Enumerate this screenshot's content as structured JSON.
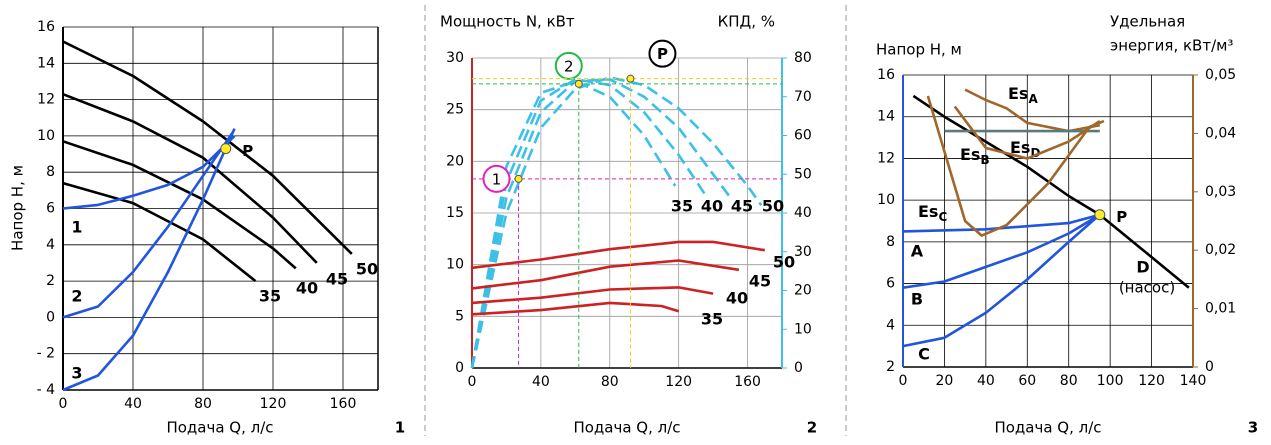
{
  "chart_data": [
    {
      "type": "line",
      "number": "1",
      "xlabel": "Подача Q, л/с",
      "ylabel": "Напор Н, м",
      "xlim": [
        0,
        180
      ],
      "xticks": [
        0,
        40,
        80,
        120,
        160
      ],
      "ylim": [
        -4,
        16
      ],
      "yticks": [
        {
          "value": -4,
          "label": "- 4"
        },
        {
          "value": -2,
          "label": "- 2"
        },
        0,
        2,
        4,
        6,
        8,
        10,
        12,
        14,
        16
      ],
      "grid": true,
      "grid_color": "#000000",
      "series": [
        {
          "name": "35",
          "color": "#000000",
          "x": [
            0,
            40,
            80,
            110
          ],
          "values": [
            7.4,
            6.3,
            4.3,
            2.0
          ]
        },
        {
          "name": "40",
          "color": "#000000",
          "x": [
            0,
            40,
            80,
            120,
            133
          ],
          "values": [
            9.7,
            8.4,
            6.5,
            3.8,
            2.7
          ]
        },
        {
          "name": "45",
          "color": "#000000",
          "x": [
            0,
            40,
            80,
            120,
            145
          ],
          "values": [
            12.3,
            10.8,
            8.8,
            5.5,
            3.0
          ]
        },
        {
          "name": "50",
          "color": "#000000",
          "x": [
            0,
            40,
            80,
            120,
            165
          ],
          "values": [
            15.2,
            13.3,
            10.8,
            7.8,
            3.5
          ]
        },
        {
          "name": "1",
          "color": "#2255dd",
          "label_color": "#e020c0",
          "x": [
            0,
            20,
            40,
            60,
            80,
            98
          ],
          "values": [
            6.0,
            6.2,
            6.7,
            7.3,
            8.3,
            10.0
          ]
        },
        {
          "name": "2",
          "color": "#2255dd",
          "label_color": "#22bb44",
          "x": [
            0,
            20,
            40,
            60,
            80,
            97
          ],
          "values": [
            0,
            0.6,
            2.5,
            5.0,
            7.8,
            10.2
          ]
        },
        {
          "name": "3",
          "color": "#2255dd",
          "label_color": "#2255dd",
          "x": [
            0,
            20,
            40,
            60,
            80,
            98
          ],
          "values": [
            -4,
            -3.2,
            -1.0,
            2.5,
            6.5,
            10.4
          ]
        }
      ],
      "points": [
        {
          "label": "P",
          "x": 93,
          "y": 9.3,
          "color": "#000000"
        }
      ]
    },
    {
      "type": "line",
      "number": "2",
      "xlabel": "Подача Q, л/с",
      "ylabel": "Мощность N, кВт",
      "y2label": "КПД, %",
      "xlim": [
        0,
        180
      ],
      "xticks": [
        0,
        40,
        80,
        120,
        160
      ],
      "ylim": [
        0,
        30
      ],
      "yticks": [
        0,
        5,
        10,
        15,
        20,
        25,
        30
      ],
      "y2lim": [
        0,
        80
      ],
      "y2ticks": [
        0,
        10,
        20,
        30,
        40,
        50,
        60,
        70,
        80
      ],
      "grid": true,
      "grid_color": "#9a9a9a",
      "y_axis_color": "#cc2222",
      "y2_axis_color": "#3cc0e8",
      "series": [
        {
          "name": "35",
          "color": "#3cc0e8",
          "dashed": true,
          "axis": "y2",
          "x": [
            0,
            20,
            40,
            60,
            80,
            100,
            118
          ],
          "values": [
            0,
            52,
            71,
            74,
            70,
            60,
            47
          ]
        },
        {
          "name": "40",
          "color": "#3cc0e8",
          "dashed": true,
          "axis": "y2",
          "x": [
            0,
            20,
            40,
            60,
            80,
            100,
            120,
            135
          ],
          "values": [
            0,
            48,
            69,
            74.5,
            73,
            66,
            55,
            45
          ]
        },
        {
          "name": "45",
          "color": "#3cc0e8",
          "dashed": true,
          "axis": "y2",
          "x": [
            0,
            20,
            40,
            60,
            80,
            100,
            120,
            140,
            150
          ],
          "values": [
            0,
            44,
            66,
            74,
            74.5,
            70,
            62,
            50,
            44
          ]
        },
        {
          "name": "50",
          "color": "#3cc0e8",
          "dashed": true,
          "axis": "y2",
          "x": [
            0,
            20,
            40,
            60,
            80,
            100,
            120,
            140,
            160,
            168
          ],
          "values": [
            0,
            40,
            62,
            72,
            75,
            73,
            67,
            58,
            47,
            42
          ]
        },
        {
          "name": "50",
          "color": "#cc2222",
          "x": [
            0,
            40,
            80,
            120,
            140,
            170
          ],
          "values": [
            9.7,
            10.5,
            11.5,
            12.2,
            12.2,
            11.4
          ]
        },
        {
          "name": "45",
          "color": "#cc2222",
          "x": [
            0,
            40,
            80,
            120,
            155
          ],
          "values": [
            7.7,
            8.5,
            9.8,
            10.4,
            9.5
          ]
        },
        {
          "name": "40",
          "color": "#cc2222",
          "x": [
            0,
            40,
            80,
            120,
            140
          ],
          "values": [
            6.3,
            6.8,
            7.6,
            7.8,
            7.2
          ]
        },
        {
          "name": "35",
          "color": "#cc2222",
          "x": [
            0,
            40,
            80,
            110,
            120
          ],
          "values": [
            5.2,
            5.6,
            6.3,
            6.0,
            5.5
          ]
        }
      ],
      "points": [
        {
          "label": "1",
          "x": 27,
          "y": 18.3,
          "color": "#e020c0"
        },
        {
          "label": "2",
          "x": 62,
          "y": 27.5,
          "color": "#22bb44"
        },
        {
          "label": "P",
          "x": 92,
          "y": 28,
          "color": "#000000"
        }
      ]
    },
    {
      "type": "line",
      "number": "3",
      "xlabel": "Подача Q, л/с",
      "ylabel": "Напор Н, м",
      "y2label": [
        "Удельная",
        "энергия, кВт/м³"
      ],
      "xlim": [
        0,
        140
      ],
      "xticks": [
        0,
        20,
        40,
        60,
        80,
        100,
        120,
        140
      ],
      "ylim": [
        2,
        16
      ],
      "yticks": [
        2,
        4,
        6,
        8,
        10,
        12,
        14,
        16
      ],
      "y2lim": [
        0,
        0.05
      ],
      "y2ticks": [
        0,
        {
          "value": 0.01,
          "label": "0,01"
        },
        {
          "value": 0.02,
          "label": "0,02"
        },
        {
          "value": 0.03,
          "label": "0,03"
        },
        {
          "value": 0.04,
          "label": "0,04"
        },
        {
          "value": 0.05,
          "label": "0,05"
        }
      ],
      "grid": true,
      "grid_color": "#000000",
      "y_axis_color": "#2255dd",
      "y2_axis_color": "#a0662a",
      "series": [
        {
          "name": "A",
          "color": "#2255dd",
          "x": [
            0,
            40,
            80,
            95
          ],
          "values": [
            8.5,
            8.6,
            8.9,
            9.3
          ]
        },
        {
          "name": "B",
          "color": "#2255dd",
          "x": [
            0,
            20,
            40,
            60,
            80,
            95
          ],
          "values": [
            5.8,
            6.1,
            6.8,
            7.5,
            8.4,
            9.3
          ]
        },
        {
          "name": "C",
          "color": "#2255dd",
          "x": [
            0,
            20,
            40,
            60,
            80,
            95
          ],
          "values": [
            3.0,
            3.4,
            4.6,
            6.2,
            8.0,
            9.3
          ]
        },
        {
          "name": "D",
          "sublabel": "(насос)",
          "color": "#000000",
          "x": [
            5,
            20,
            40,
            60,
            80,
            95,
            138
          ],
          "values": [
            15,
            14,
            12.8,
            11.6,
            10.2,
            9.3,
            5.8
          ]
        },
        {
          "name": "EsA",
          "color": "#a0662a",
          "axis": "y2",
          "x": [
            30,
            40,
            50,
            60,
            80,
            95
          ],
          "values": [
            0.0475,
            0.0457,
            0.0443,
            0.0418,
            0.0404,
            0.0414
          ]
        },
        {
          "name": "EsD",
          "color": "#5b7b7b",
          "axis": "y2",
          "x": [
            20,
            95
          ],
          "values": [
            0.0404,
            0.0404
          ]
        },
        {
          "name": "EsB",
          "color": "#a0662a",
          "axis": "y2",
          "x": [
            25,
            40,
            60,
            80,
            95
          ],
          "values": [
            0.0446,
            0.0375,
            0.0357,
            0.0386,
            0.0421
          ]
        },
        {
          "name": "EsC",
          "color": "#a0662a",
          "axis": "y2",
          "x": [
            12,
            30,
            38,
            50,
            70,
            90,
            97
          ],
          "values": [
            0.0464,
            0.025,
            0.0225,
            0.0243,
            0.0314,
            0.0411,
            0.0421
          ]
        }
      ],
      "points": [
        {
          "label": "P",
          "x": 95,
          "y": 9.3,
          "color": "#000000"
        }
      ]
    }
  ]
}
